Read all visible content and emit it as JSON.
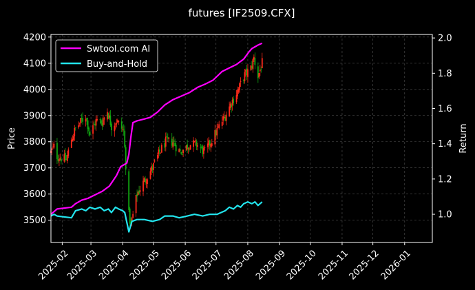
{
  "chart_data": {
    "type": "line",
    "title": "futures [IF2509.CFX]",
    "ylabel_left": "Price",
    "ylabel_right": "Return",
    "xlabel": "",
    "xlim": [
      "2025-01-21",
      "2026-01-28"
    ],
    "ylim_left": [
      3415,
      4210
    ],
    "ylim_right": [
      0.84,
      2.02
    ],
    "grid": true,
    "legend_position": "upper-left",
    "x_ticks": [
      "2025-02",
      "2025-03",
      "2025-04",
      "2025-05",
      "2025-06",
      "2025-07",
      "2025-08",
      "2025-09",
      "2025-10",
      "2025-11",
      "2025-12",
      "2026-01"
    ],
    "y_ticks_left": [
      3500,
      3600,
      3700,
      3800,
      3900,
      4000,
      4100,
      4200
    ],
    "y_ticks_right": [
      1.0,
      1.2,
      1.4,
      1.6,
      1.8,
      2.0
    ],
    "series": [
      {
        "name": "Swtool.com AI",
        "axis": "right",
        "color": "#ff00ff",
        "points": [
          [
            "2025-01-21",
            1.0
          ],
          [
            "2025-01-27",
            1.03
          ],
          [
            "2025-02-10",
            1.04
          ],
          [
            "2025-02-14",
            1.06
          ],
          [
            "2025-02-20",
            1.08
          ],
          [
            "2025-02-26",
            1.09
          ],
          [
            "2025-03-05",
            1.11
          ],
          [
            "2025-03-12",
            1.13
          ],
          [
            "2025-03-19",
            1.16
          ],
          [
            "2025-03-26",
            1.22
          ],
          [
            "2025-03-30",
            1.27
          ],
          [
            "2025-04-05",
            1.29
          ],
          [
            "2025-04-07",
            1.34
          ],
          [
            "2025-04-09",
            1.44
          ],
          [
            "2025-04-11",
            1.52
          ],
          [
            "2025-04-15",
            1.53
          ],
          [
            "2025-04-22",
            1.54
          ],
          [
            "2025-04-28",
            1.55
          ],
          [
            "2025-05-05",
            1.58
          ],
          [
            "2025-05-12",
            1.62
          ],
          [
            "2025-05-20",
            1.65
          ],
          [
            "2025-05-28",
            1.67
          ],
          [
            "2025-06-05",
            1.69
          ],
          [
            "2025-06-13",
            1.72
          ],
          [
            "2025-06-21",
            1.74
          ],
          [
            "2025-06-28",
            1.76
          ],
          [
            "2025-07-07",
            1.81
          ],
          [
            "2025-07-14",
            1.83
          ],
          [
            "2025-07-21",
            1.85
          ],
          [
            "2025-07-28",
            1.88
          ],
          [
            "2025-08-02",
            1.92
          ],
          [
            "2025-08-05",
            1.94
          ],
          [
            "2025-08-11",
            1.96
          ],
          [
            "2025-08-15",
            1.97
          ]
        ]
      },
      {
        "name": "Buy-and-Hold",
        "axis": "right",
        "color": "#22e5ee",
        "points": [
          [
            "2025-01-21",
            0.99
          ],
          [
            "2025-01-24",
            1.0
          ],
          [
            "2025-01-27",
            0.99
          ],
          [
            "2025-02-10",
            0.98
          ],
          [
            "2025-02-14",
            1.02
          ],
          [
            "2025-02-20",
            1.03
          ],
          [
            "2025-02-24",
            1.02
          ],
          [
            "2025-02-28",
            1.04
          ],
          [
            "2025-03-05",
            1.03
          ],
          [
            "2025-03-10",
            1.04
          ],
          [
            "2025-03-14",
            1.02
          ],
          [
            "2025-03-18",
            1.03
          ],
          [
            "2025-03-21",
            1.01
          ],
          [
            "2025-03-25",
            1.04
          ],
          [
            "2025-03-28",
            1.03
          ],
          [
            "2025-04-01",
            1.02
          ],
          [
            "2025-04-03",
            1.01
          ],
          [
            "2025-04-07",
            0.9
          ],
          [
            "2025-04-10",
            0.96
          ],
          [
            "2025-04-15",
            0.97
          ],
          [
            "2025-04-22",
            0.97
          ],
          [
            "2025-04-30",
            0.96
          ],
          [
            "2025-05-07",
            0.97
          ],
          [
            "2025-05-12",
            0.99
          ],
          [
            "2025-05-20",
            0.99
          ],
          [
            "2025-05-26",
            0.98
          ],
          [
            "2025-06-03",
            0.99
          ],
          [
            "2025-06-10",
            1.0
          ],
          [
            "2025-06-18",
            0.99
          ],
          [
            "2025-06-25",
            1.0
          ],
          [
            "2025-07-02",
            1.0
          ],
          [
            "2025-07-10",
            1.02
          ],
          [
            "2025-07-14",
            1.04
          ],
          [
            "2025-07-18",
            1.03
          ],
          [
            "2025-07-22",
            1.05
          ],
          [
            "2025-07-25",
            1.04
          ],
          [
            "2025-07-28",
            1.06
          ],
          [
            "2025-08-01",
            1.07
          ],
          [
            "2025-08-05",
            1.06
          ],
          [
            "2025-08-08",
            1.07
          ],
          [
            "2025-08-11",
            1.05
          ],
          [
            "2025-08-15",
            1.07
          ]
        ]
      },
      {
        "name": "",
        "axis": "left",
        "type": "candlestick",
        "colors": {
          "up": "#ff2a1a",
          "down": "#11aa11"
        },
        "anchors": [
          [
            "2025-01-21",
            3760
          ],
          [
            "2025-01-24",
            3780
          ],
          [
            "2025-01-27",
            3745
          ],
          [
            "2025-02-05",
            3730
          ],
          [
            "2025-02-10",
            3810
          ],
          [
            "2025-02-14",
            3850
          ],
          [
            "2025-02-20",
            3880
          ],
          [
            "2025-02-24",
            3900
          ],
          [
            "2025-02-28",
            3830
          ],
          [
            "2025-03-06",
            3880
          ],
          [
            "2025-03-12",
            3875
          ],
          [
            "2025-03-17",
            3920
          ],
          [
            "2025-03-21",
            3860
          ],
          [
            "2025-03-26",
            3880
          ],
          [
            "2025-04-02",
            3840
          ],
          [
            "2025-04-07",
            3520
          ],
          [
            "2025-04-09",
            3480
          ],
          [
            "2025-04-15",
            3600
          ],
          [
            "2025-04-22",
            3650
          ],
          [
            "2025-04-30",
            3700
          ],
          [
            "2025-05-07",
            3760
          ],
          [
            "2025-05-13",
            3800
          ],
          [
            "2025-05-20",
            3800
          ],
          [
            "2025-05-27",
            3760
          ],
          [
            "2025-06-05",
            3790
          ],
          [
            "2025-06-12",
            3790
          ],
          [
            "2025-06-20",
            3760
          ],
          [
            "2025-06-26",
            3800
          ],
          [
            "2025-07-03",
            3850
          ],
          [
            "2025-07-10",
            3900
          ],
          [
            "2025-07-16",
            3950
          ],
          [
            "2025-07-23",
            4000
          ],
          [
            "2025-07-28",
            4050
          ],
          [
            "2025-08-04",
            4080
          ],
          [
            "2025-08-07",
            4120
          ],
          [
            "2025-08-11",
            4050
          ],
          [
            "2025-08-15",
            4100
          ]
        ]
      }
    ]
  }
}
